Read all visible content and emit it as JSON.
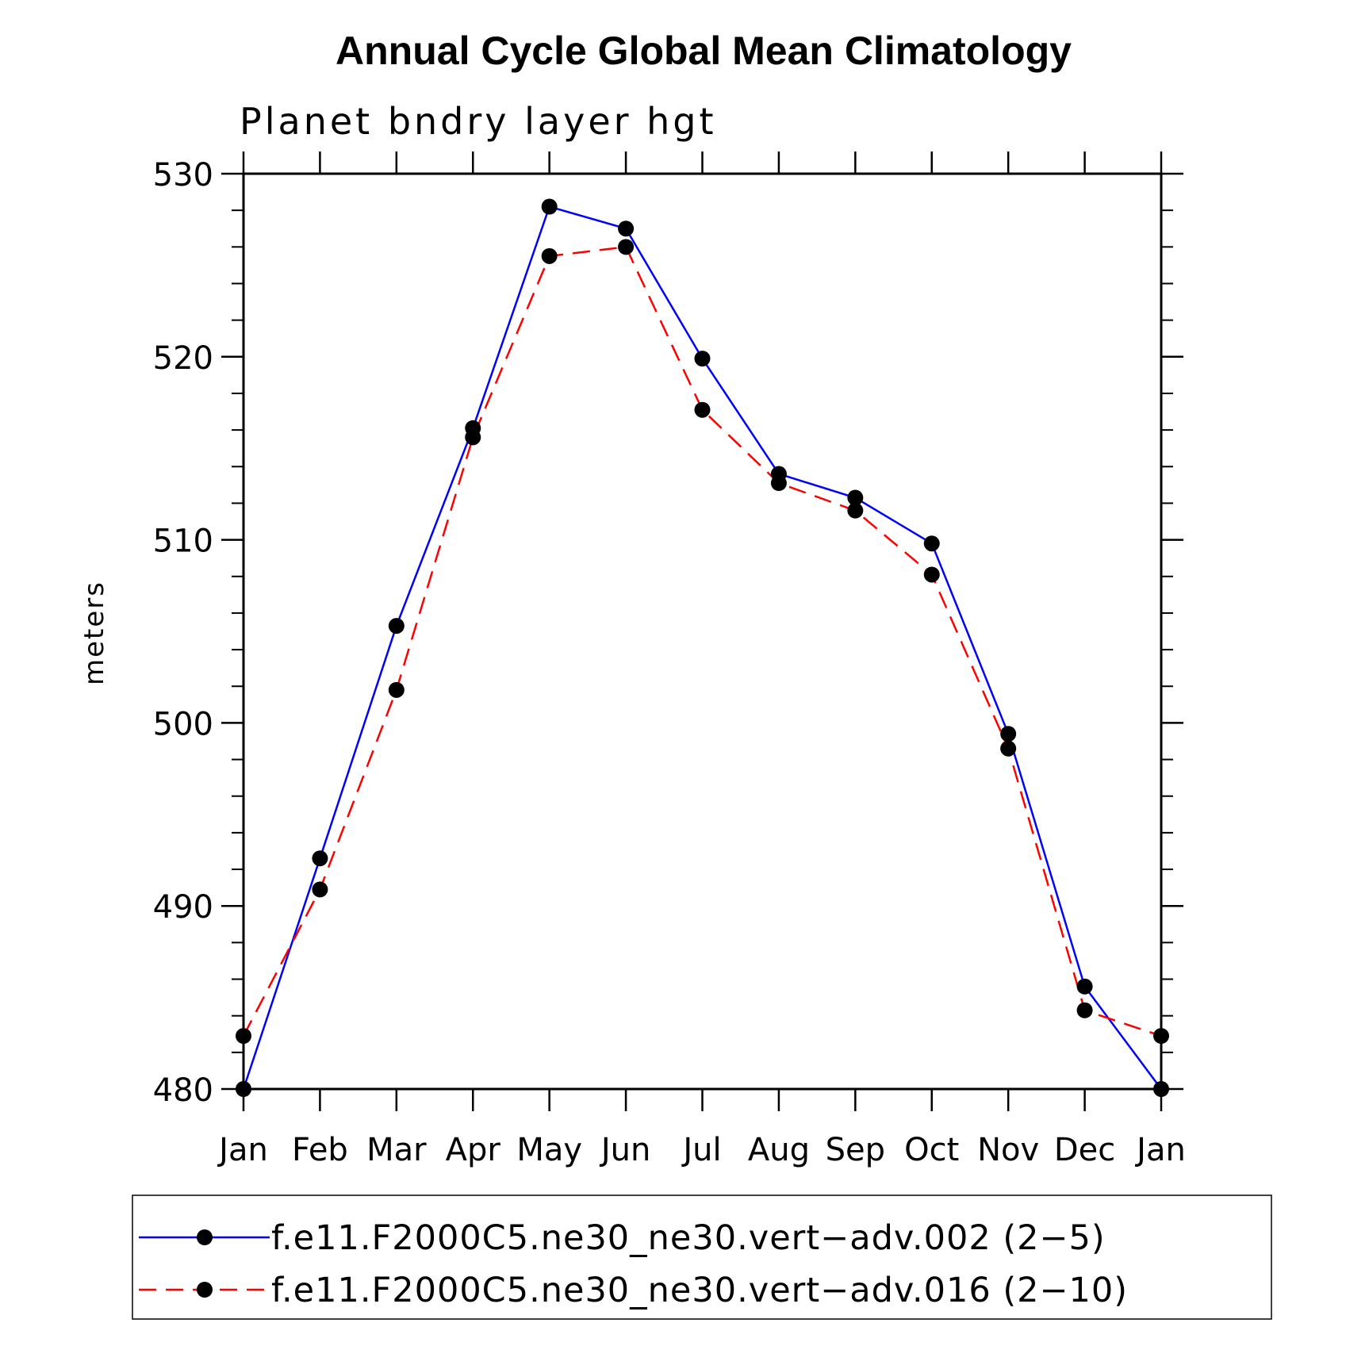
{
  "chart_data": {
    "type": "line",
    "title": "Annual Cycle Global Mean Climatology",
    "subtitle": "Planet bndry layer hgt",
    "xlabel": "",
    "ylabel": "meters",
    "ylim": [
      480,
      530
    ],
    "y_major_ticks": [
      480,
      490,
      500,
      510,
      520,
      530
    ],
    "y_minor_step": 2,
    "categories": [
      "Jan",
      "Feb",
      "Mar",
      "Apr",
      "May",
      "Jun",
      "Jul",
      "Aug",
      "Sep",
      "Oct",
      "Nov",
      "Dec",
      "Jan"
    ],
    "series": [
      {
        "name": "f.e11.F2000C5.ne30_ne30.vert−adv.002 (2−5)",
        "color": "#0000ff",
        "dash": "solid",
        "values": [
          480.0,
          492.6,
          505.3,
          516.1,
          528.2,
          527.0,
          519.9,
          513.6,
          512.3,
          509.8,
          499.4,
          485.6,
          480.0
        ]
      },
      {
        "name": "f.e11.F2000C5.ne30_ne30.vert−adv.016 (2−10)",
        "color": "#ff0000",
        "dash": "dashed",
        "values": [
          482.9,
          490.9,
          501.8,
          515.6,
          525.5,
          526.0,
          517.1,
          513.1,
          511.6,
          508.1,
          498.6,
          484.3,
          482.9
        ]
      }
    ],
    "legend_position": "bottom"
  }
}
